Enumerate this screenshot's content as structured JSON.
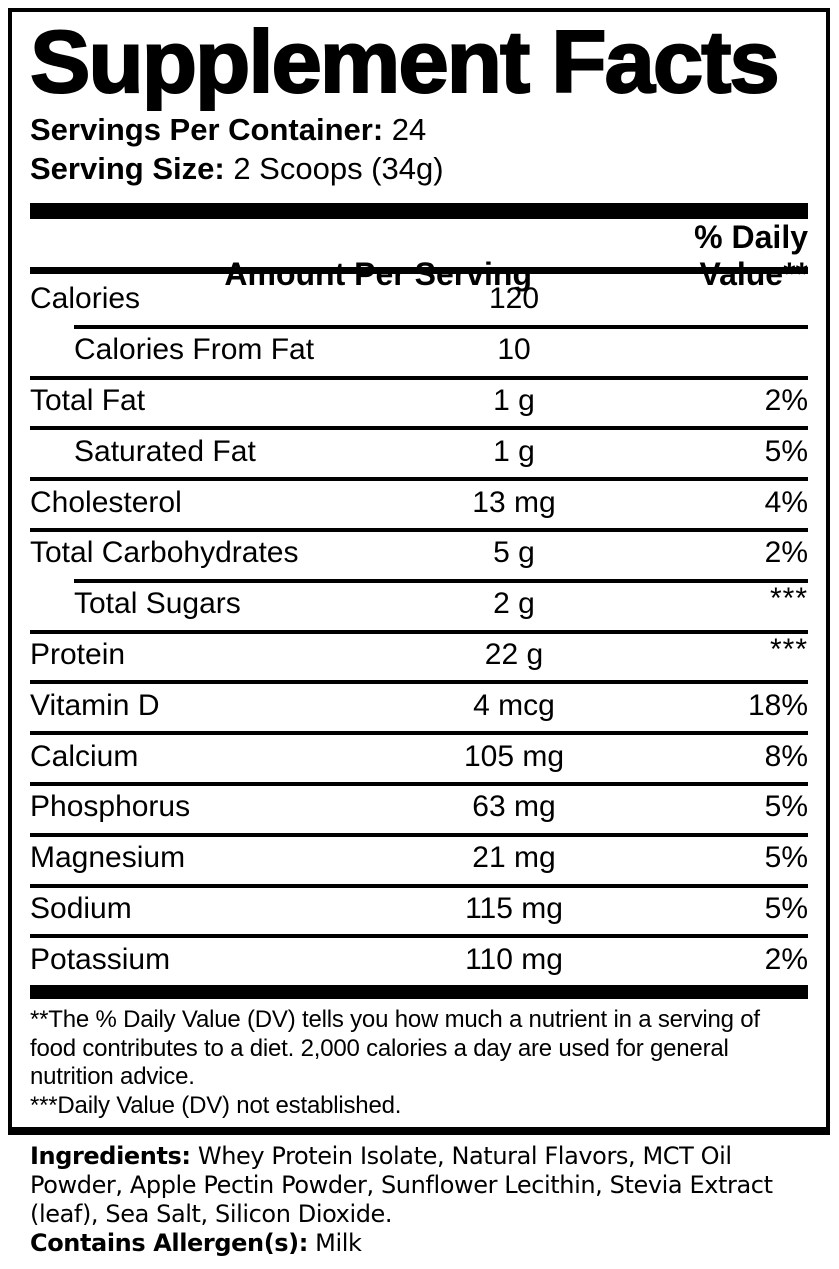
{
  "title": "Supplement Facts",
  "servings": {
    "label": "Servings Per Container:",
    "value": "24"
  },
  "serving_size": {
    "label": "Serving Size:",
    "value": "2 Scoops (34g)"
  },
  "table": {
    "amount_header": "Amount Per Serving",
    "dv_header": "% Daily Value**",
    "rows": [
      {
        "label": "Calories",
        "indent": false,
        "amount": "120",
        "dv": "",
        "sep": "none"
      },
      {
        "label": "Calories From Fat",
        "indent": true,
        "amount": "10",
        "dv": "",
        "sep": "indent"
      },
      {
        "label": "Total Fat",
        "indent": false,
        "amount": "1 g",
        "dv": "2%",
        "sep": "full"
      },
      {
        "label": "Saturated Fat",
        "indent": true,
        "amount": "1 g",
        "dv": "5%",
        "sep": "full"
      },
      {
        "label": "Cholesterol",
        "indent": false,
        "amount": "13 mg",
        "dv": "4%",
        "sep": "full"
      },
      {
        "label": "Total Carbohydrates",
        "indent": false,
        "amount": "5 g",
        "dv": "2%",
        "sep": "full"
      },
      {
        "label": "Total Sugars",
        "indent": true,
        "amount": "2 g",
        "dv": "***",
        "sep": "indent"
      },
      {
        "label": "Protein",
        "indent": false,
        "amount": "22 g",
        "dv": "***",
        "sep": "full"
      },
      {
        "label": "Vitamin D",
        "indent": false,
        "amount": "4 mcg",
        "dv": "18%",
        "sep": "full"
      },
      {
        "label": "Calcium",
        "indent": false,
        "amount": "105 mg",
        "dv": "8%",
        "sep": "full"
      },
      {
        "label": "Phosphorus",
        "indent": false,
        "amount": "63 mg",
        "dv": "5%",
        "sep": "full"
      },
      {
        "label": "Magnesium",
        "indent": false,
        "amount": "21 mg",
        "dv": "5%",
        "sep": "full"
      },
      {
        "label": "Sodium",
        "indent": false,
        "amount": "115 mg",
        "dv": "5%",
        "sep": "full"
      },
      {
        "label": "Potassium",
        "indent": false,
        "amount": "110 mg",
        "dv": "2%",
        "sep": "full"
      }
    ]
  },
  "footnotes": [
    "**The % Daily Value (DV) tells you how much a nutrient in a serving of food contributes to a diet. 2,000 calories a day are used for general nutrition advice.",
    "***Daily Value (DV) not established."
  ],
  "ingredients": {
    "label": "Ingredients:",
    "value": "Whey Protein Isolate, Natural Flavors, MCT Oil Powder, Apple Pectin Powder, Sunflower Lecithin, Stevia Extract (leaf), Sea Salt, Silicon Dioxide."
  },
  "allergens": {
    "label": "Contains Allergen(s):",
    "value": "Milk"
  },
  "colors": {
    "text": "#000000",
    "background": "#ffffff"
  }
}
